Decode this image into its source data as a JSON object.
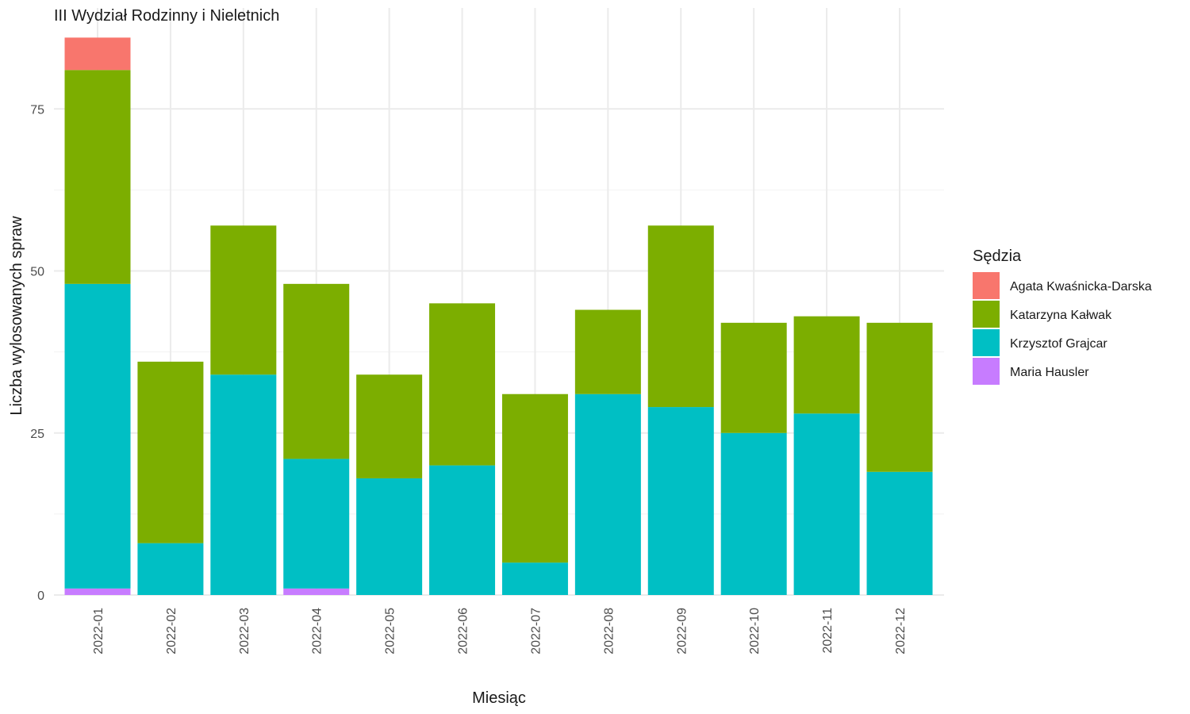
{
  "chart_data": {
    "type": "bar",
    "stacked": true,
    "title": "III Wydział Rodzinny i Nieletnich",
    "xlabel": "Miesiąc",
    "ylabel": "Liczba wylosowanych spraw",
    "ylim": [
      0,
      87
    ],
    "yticks": [
      0,
      25,
      50,
      75
    ],
    "grid": true,
    "legend_title": "Sędzia",
    "legend_position": "right",
    "categories": [
      "2022-01",
      "2022-02",
      "2022-03",
      "2022-04",
      "2022-05",
      "2022-06",
      "2022-07",
      "2022-08",
      "2022-09",
      "2022-10",
      "2022-11",
      "2022-12"
    ],
    "series": [
      {
        "name": "Maria Hausler",
        "color": "#C77CFF",
        "values": [
          1,
          0,
          0,
          1,
          0,
          0,
          0,
          0,
          0,
          0,
          0,
          0
        ]
      },
      {
        "name": "Krzysztof Grajcar",
        "color": "#00BFC4",
        "values": [
          47,
          8,
          34,
          20,
          18,
          20,
          5,
          31,
          29,
          25,
          28,
          19
        ]
      },
      {
        "name": "Katarzyna Kałwak",
        "color": "#7CAE00",
        "values": [
          33,
          28,
          23,
          27,
          16,
          25,
          26,
          13,
          28,
          17,
          15,
          23
        ]
      },
      {
        "name": "Agata Kwaśnicka-Darska",
        "color": "#F8766D",
        "values": [
          5,
          0,
          0,
          0,
          0,
          0,
          0,
          0,
          0,
          0,
          0,
          0
        ]
      }
    ],
    "legend_order": [
      "Agata Kwaśnicka-Darska",
      "Katarzyna Kałwak",
      "Krzysztof Grajcar",
      "Maria Hausler"
    ]
  }
}
